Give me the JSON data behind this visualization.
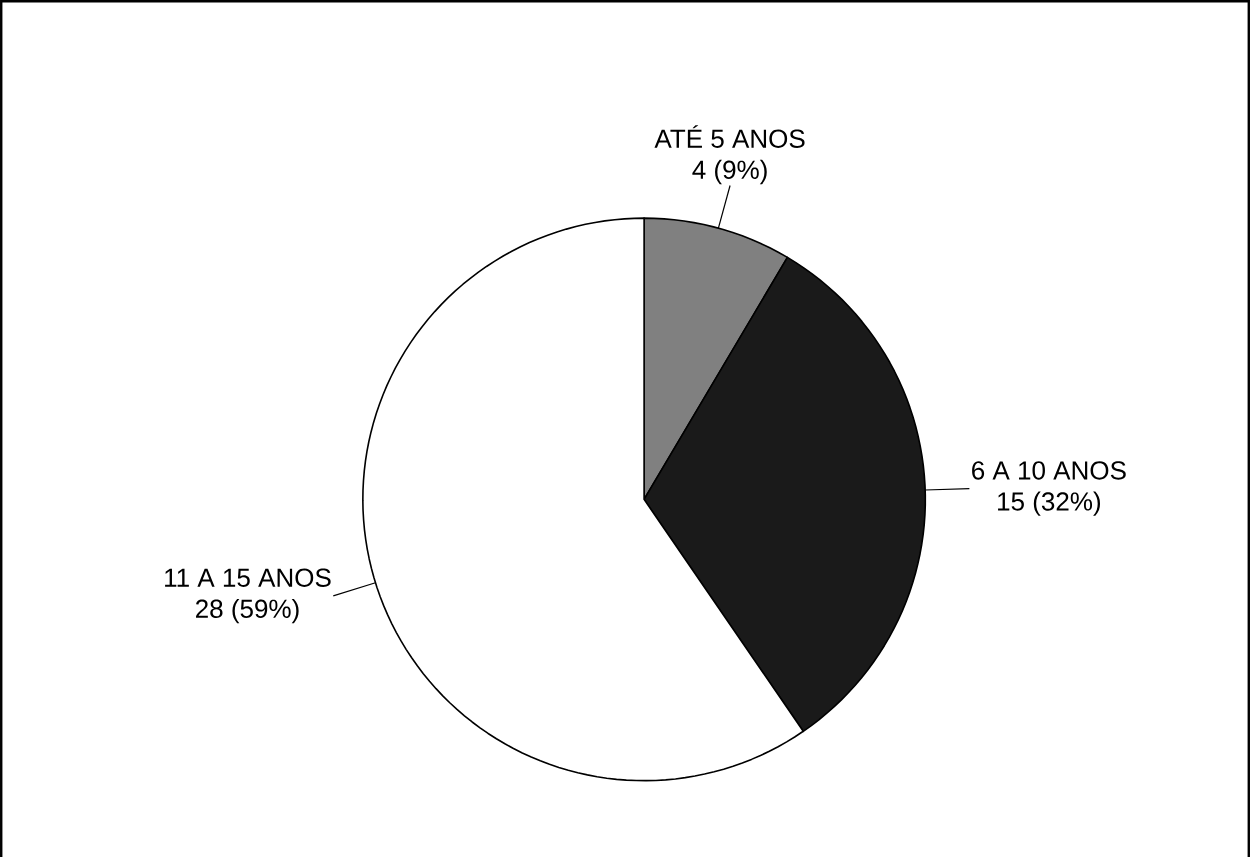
{
  "chart_data": {
    "type": "pie",
    "categories": [
      "ATÉ 5 ANOS",
      "6 A 10 ANOS",
      "11 A 15 ANOS"
    ],
    "values": [
      4,
      15,
      28
    ],
    "value_labels": [
      "4 (9%)",
      "15 (32%)",
      "28 (59%)"
    ],
    "colors": [
      "#808080",
      "#1a1a1a",
      "#ffffff"
    ]
  }
}
